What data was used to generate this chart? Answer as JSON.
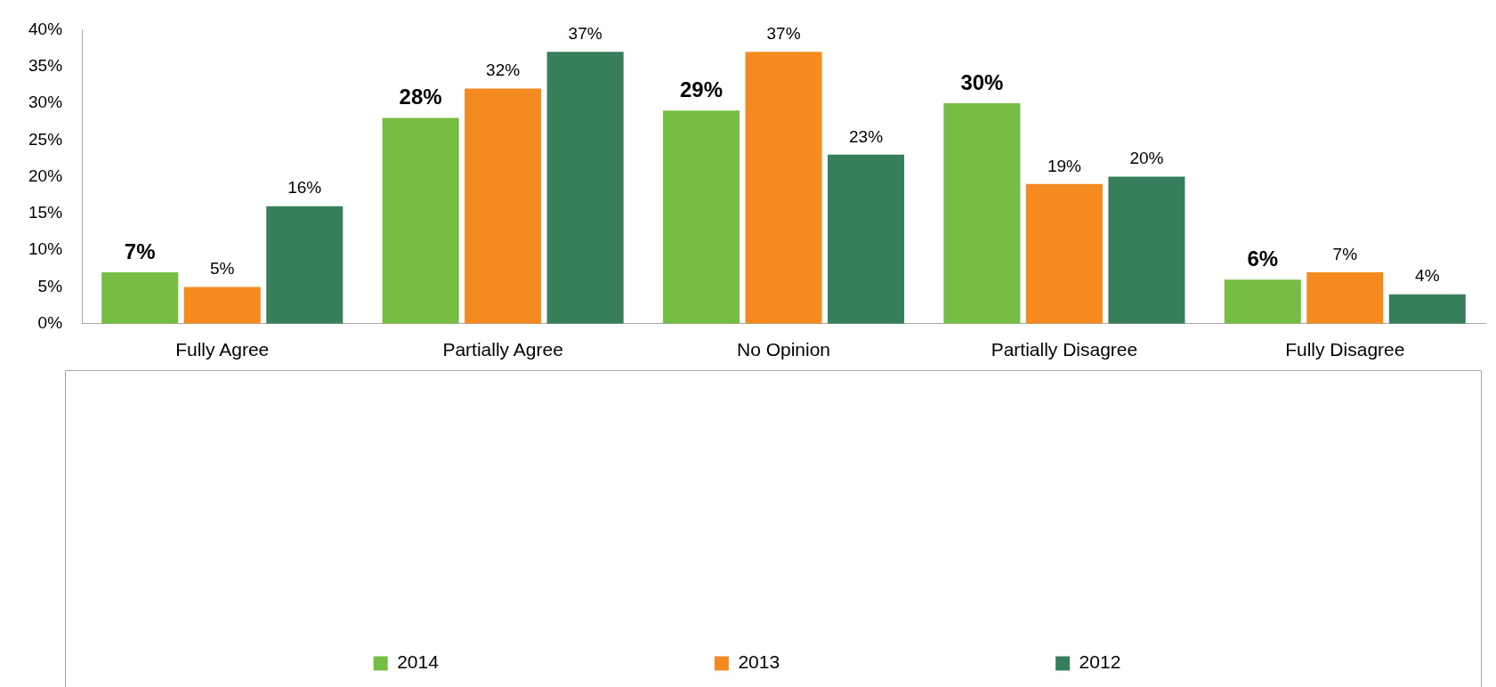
{
  "chart_data": {
    "type": "bar",
    "categories": [
      "Fully Agree",
      "Partially Agree",
      "No Opinion",
      "Partially Disagree",
      "Fully Disagree"
    ],
    "series": [
      {
        "name": "2014",
        "color": "#77bc43",
        "values": [
          7,
          28,
          29,
          30,
          6
        ],
        "value_labels": [
          "7%",
          "28%",
          "29%",
          "30%",
          "6%"
        ]
      },
      {
        "name": "2013",
        "color": "#f58b20",
        "values": [
          5,
          32,
          37,
          19,
          7
        ],
        "value_labels": [
          "5%",
          "32%",
          "37%",
          "19%",
          "7%"
        ]
      },
      {
        "name": "2012",
        "color": "#367f5a",
        "values": [
          16,
          37,
          23,
          20,
          4
        ],
        "value_labels": [
          "16%",
          "37%",
          "23%",
          "20%",
          "4%"
        ]
      }
    ],
    "ylim": [
      0,
      40
    ],
    "yticks": [
      {
        "value": 0,
        "label": "0%"
      },
      {
        "value": 5,
        "label": "5%"
      },
      {
        "value": 10,
        "label": "10%"
      },
      {
        "value": 15,
        "label": "15%"
      },
      {
        "value": 20,
        "label": "20%"
      },
      {
        "value": 25,
        "label": "25%"
      },
      {
        "value": 30,
        "label": "30%"
      },
      {
        "value": 35,
        "label": "35%"
      },
      {
        "value": 40,
        "label": "40%"
      }
    ],
    "grid": false,
    "legend": "bottom"
  }
}
